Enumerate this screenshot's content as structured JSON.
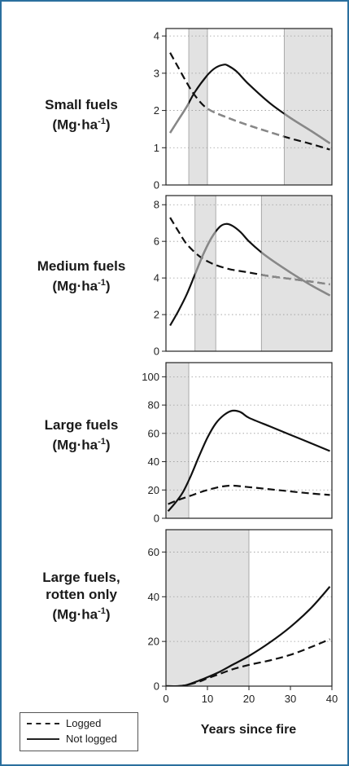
{
  "panels": [
    {
      "label_main": "Small fuels",
      "label_unit": "(Mg·ha",
      "label_sup": "-1",
      "label_close": ")",
      "ylim": [
        0,
        4.2
      ],
      "yticks": [
        "0",
        "1",
        "2",
        "3",
        "4"
      ],
      "shaded": [
        [
          5.5,
          10
        ],
        [
          28.5,
          40
        ]
      ],
      "gray_segments": [
        [
          0,
          5.5,
          "notlogged"
        ],
        [
          10,
          28.5,
          "logged"
        ],
        [
          28.5,
          40,
          "notlogged"
        ]
      ]
    },
    {
      "label_main": "Medium fuels",
      "label_unit": "(Mg·ha",
      "label_sup": "-1",
      "label_close": ")",
      "ylim": [
        0,
        8.5
      ],
      "yticks": [
        "0",
        "2",
        "4",
        "6",
        "8"
      ],
      "shaded": [
        [
          7,
          12
        ],
        [
          23,
          40
        ]
      ],
      "gray_segments": [
        [
          7,
          12,
          "notlogged"
        ],
        [
          23,
          40,
          "notlogged"
        ],
        [
          23,
          40,
          "logged"
        ]
      ]
    },
    {
      "label_main": "Large fuels",
      "label_unit": "(Mg·ha",
      "label_sup": "-1",
      "label_close": ")",
      "ylim": [
        0,
        110
      ],
      "yticks": [
        "0",
        "20",
        "40",
        "60",
        "80",
        "100"
      ],
      "shaded": [
        [
          0,
          5.5
        ]
      ],
      "gray_segments": []
    },
    {
      "label_main": "Large fuels,",
      "label_main2": "rotten only",
      "label_unit": "(Mg·ha",
      "label_sup": "-1",
      "label_close": ")",
      "ylim": [
        0,
        70
      ],
      "yticks": [
        "0",
        "20",
        "40",
        "60"
      ],
      "shaded": [
        [
          0,
          20
        ]
      ],
      "gray_segments": []
    }
  ],
  "x_axis": {
    "label": "Years since fire",
    "ticks": [
      "0",
      "10",
      "20",
      "30",
      "40"
    ],
    "xlim": [
      0,
      40
    ]
  },
  "legend": {
    "logged": "Logged",
    "not_logged": "Not logged"
  },
  "colors": {
    "shade": "#e2e2e2",
    "line_dark": "#111111",
    "line_gray": "#888888",
    "frame": "#2a6f9e"
  },
  "chart_data": [
    {
      "type": "line",
      "title": "Small fuels (Mg·ha-1)",
      "xlabel": "Years since fire",
      "ylabel": "",
      "xlim": [
        0,
        40
      ],
      "ylim": [
        0,
        4.2
      ],
      "grid": "horizontal dotted",
      "series": [
        {
          "name": "Logged",
          "x": [
            1,
            3,
            5,
            7,
            10,
            15,
            20,
            25,
            30,
            35,
            39.5
          ],
          "y": [
            3.55,
            3.15,
            2.75,
            2.4,
            2.05,
            1.8,
            1.6,
            1.42,
            1.25,
            1.1,
            0.95
          ]
        },
        {
          "name": "Not logged",
          "x": [
            1,
            3,
            5,
            7,
            10,
            12,
            14,
            15,
            17,
            20,
            25,
            30,
            35,
            39.5
          ],
          "y": [
            1.4,
            1.75,
            2.1,
            2.5,
            2.95,
            3.15,
            3.23,
            3.2,
            3.05,
            2.7,
            2.2,
            1.8,
            1.45,
            1.12
          ]
        }
      ]
    },
    {
      "type": "line",
      "title": "Medium fuels (Mg·ha-1)",
      "xlabel": "Years since fire",
      "ylabel": "",
      "xlim": [
        0,
        40
      ],
      "ylim": [
        0,
        8.5
      ],
      "grid": "horizontal dotted",
      "series": [
        {
          "name": "Logged",
          "x": [
            1,
            3,
            5,
            8,
            11,
            15,
            20,
            25,
            30,
            35,
            39.5
          ],
          "y": [
            7.3,
            6.55,
            5.85,
            5.2,
            4.8,
            4.5,
            4.3,
            4.1,
            3.95,
            3.8,
            3.65
          ]
        },
        {
          "name": "Not logged",
          "x": [
            1,
            3,
            5,
            7,
            9,
            11,
            13,
            14.5,
            16,
            18,
            20,
            23,
            26,
            30,
            35,
            39.5
          ],
          "y": [
            1.4,
            2.2,
            3.1,
            4.2,
            5.3,
            6.2,
            6.8,
            6.95,
            6.85,
            6.5,
            6.0,
            5.4,
            4.9,
            4.3,
            3.6,
            3.05
          ]
        }
      ]
    },
    {
      "type": "line",
      "title": "Large fuels (Mg·ha-1)",
      "xlabel": "Years since fire",
      "ylabel": "",
      "xlim": [
        0,
        40
      ],
      "ylim": [
        0,
        110
      ],
      "grid": "horizontal dotted",
      "series": [
        {
          "name": "Logged",
          "x": [
            0.5,
            3,
            6,
            10,
            15,
            20,
            25,
            30,
            35,
            39.5
          ],
          "y": [
            10,
            13,
            16,
            20,
            23,
            22,
            20.5,
            19,
            17.5,
            16.5
          ]
        },
        {
          "name": "Not logged",
          "x": [
            0.5,
            2,
            4,
            6,
            8,
            10,
            12,
            14,
            16,
            18,
            20,
            25,
            30,
            35,
            39.5
          ],
          "y": [
            5,
            10,
            18,
            30,
            44,
            57,
            67,
            73,
            76,
            75,
            71,
            65,
            59,
            53,
            47.5
          ]
        }
      ]
    },
    {
      "type": "line",
      "title": "Large fuels, rotten only (Mg·ha-1)",
      "xlabel": "Years since fire",
      "ylabel": "",
      "xlim": [
        0,
        40
      ],
      "ylim": [
        0,
        70
      ],
      "grid": "horizontal dotted",
      "series": [
        {
          "name": "Logged",
          "x": [
            0,
            3,
            5,
            8,
            10,
            13,
            16,
            20,
            25,
            30,
            35,
            39.5
          ],
          "y": [
            0,
            0,
            0.5,
            2,
            3.5,
            5.5,
            7.5,
            9.5,
            11.5,
            14,
            17.5,
            21
          ]
        },
        {
          "name": "Not logged",
          "x": [
            0,
            3,
            5,
            8,
            10,
            13,
            16,
            20,
            25,
            30,
            35,
            39.5
          ],
          "y": [
            0,
            0,
            0.5,
            2.5,
            4,
            6.5,
            9.5,
            13.5,
            19.5,
            26.5,
            35,
            44.5
          ]
        }
      ]
    }
  ]
}
